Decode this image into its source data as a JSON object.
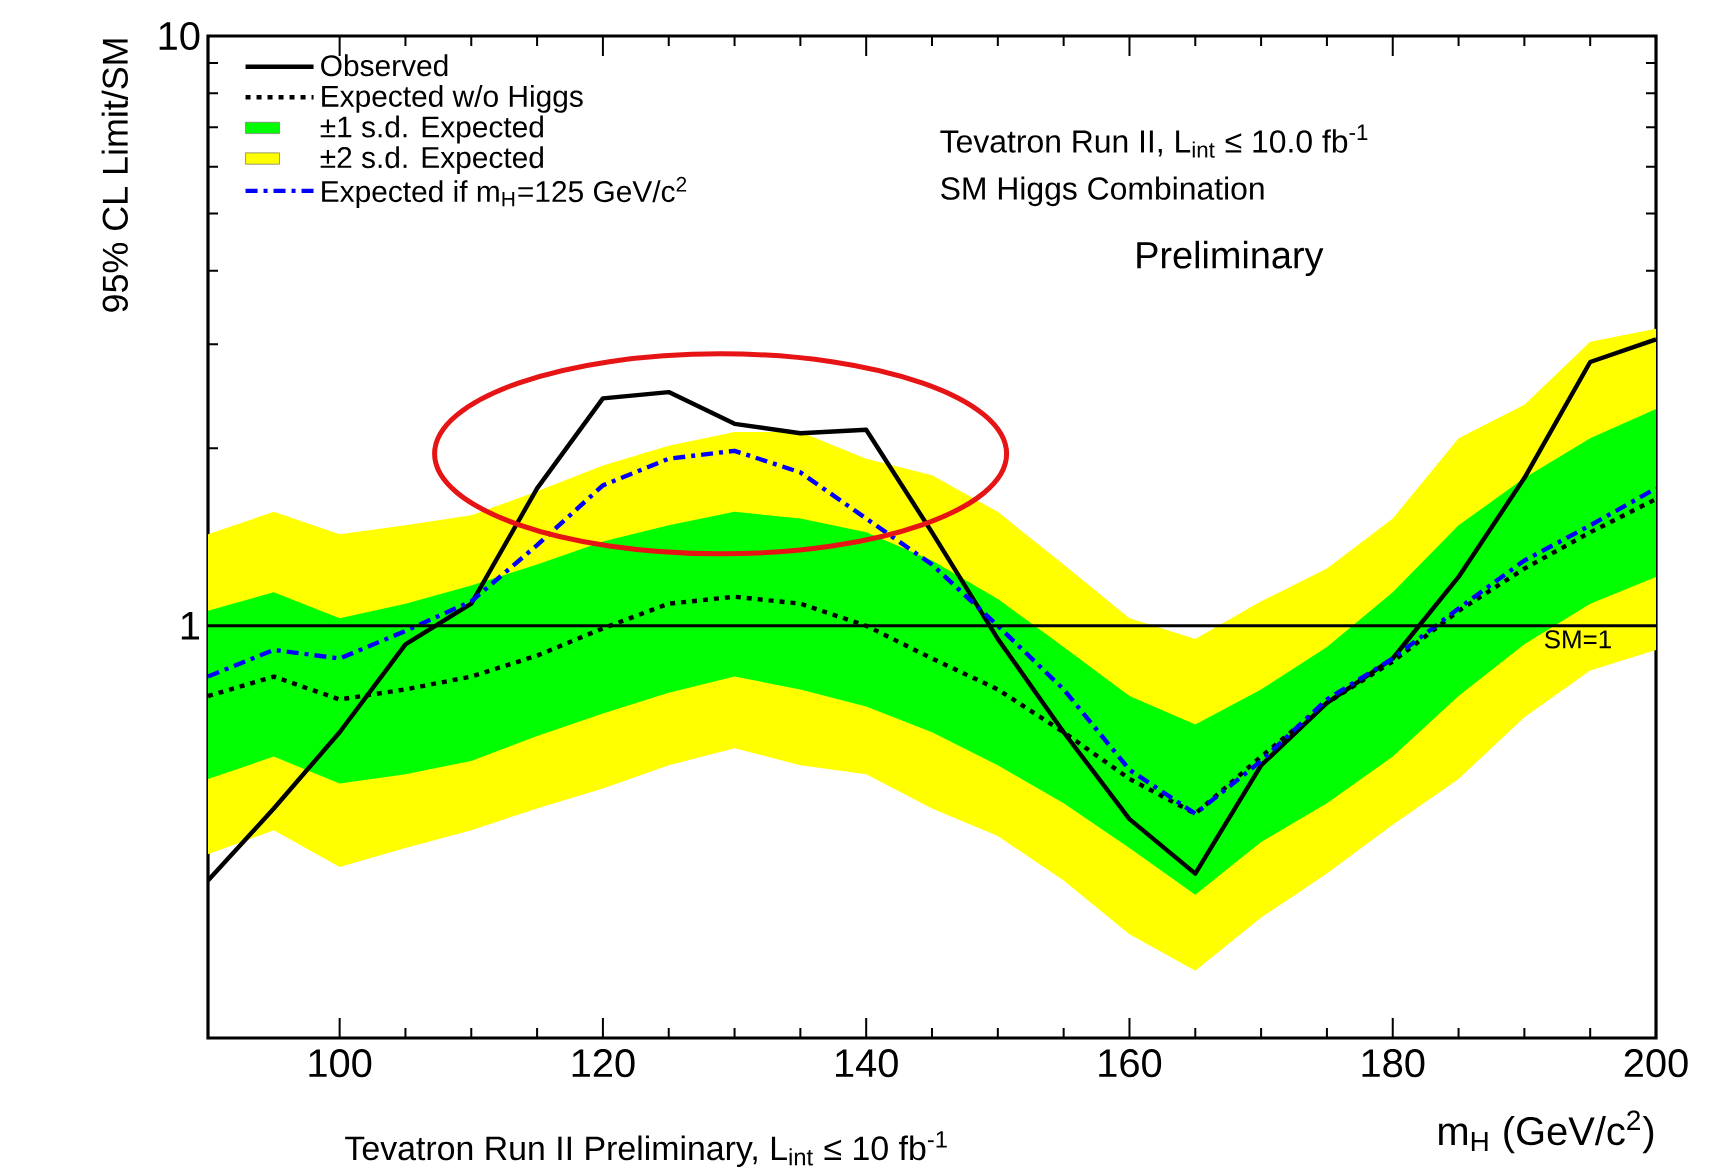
{
  "chart_data": {
    "type": "line",
    "xlabel": "m$_{H}$ (GeV/c$^{2}$)",
    "ylabel": "95% CL Limit/SM",
    "annotations": [
      "Tevatron Run II, L$_{int}$ ≤ 10.0 fb$^{-1}$",
      "SM Higgs Combination",
      "Preliminary",
      "Tevatron Run II Preliminary, L$_{int}$ ≤ 10 fb$^{-1}$"
    ],
    "x": [
      90,
      95,
      100,
      105,
      110,
      115,
      120,
      125,
      130,
      135,
      140,
      145,
      150,
      155,
      160,
      165,
      170,
      175,
      180,
      185,
      190,
      195,
      200
    ],
    "series": [
      {
        "name": "Observed",
        "type": "line",
        "color": "#000000",
        "line_style": "solid",
        "values": [
          0.37,
          0.49,
          0.66,
          0.93,
          1.09,
          1.71,
          2.43,
          2.49,
          2.2,
          2.12,
          2.15,
          1.44,
          0.95,
          0.66,
          0.47,
          0.38,
          0.58,
          0.74,
          0.88,
          1.21,
          1.78,
          2.8,
          3.06
        ]
      },
      {
        "name": "Expected w/o Higgs",
        "type": "line",
        "color": "#000000",
        "line_style": "dotted",
        "values": [
          0.76,
          0.82,
          0.75,
          0.78,
          0.82,
          0.89,
          0.99,
          1.09,
          1.12,
          1.09,
          1.0,
          0.88,
          0.78,
          0.66,
          0.55,
          0.48,
          0.6,
          0.74,
          0.87,
          1.06,
          1.25,
          1.44,
          1.64
        ]
      },
      {
        "name": "±1 s.d. Expected",
        "color": "#00ff00",
        "values": [
          null,
          null,
          null,
          null,
          null,
          null,
          null,
          null,
          null,
          null,
          null,
          null,
          null,
          null,
          null,
          null,
          null,
          null,
          null,
          null,
          null,
          null,
          null
        ],
        "lower": [
          0.55,
          0.6,
          0.54,
          0.56,
          0.59,
          0.65,
          0.71,
          0.77,
          0.82,
          0.78,
          0.73,
          0.66,
          0.58,
          0.5,
          0.42,
          0.35,
          0.43,
          0.5,
          0.6,
          0.76,
          0.93,
          1.09,
          1.21
        ],
        "upper": [
          1.06,
          1.14,
          1.03,
          1.09,
          1.17,
          1.27,
          1.39,
          1.48,
          1.56,
          1.52,
          1.44,
          1.29,
          1.11,
          0.92,
          0.76,
          0.68,
          0.78,
          0.92,
          1.14,
          1.48,
          1.78,
          2.08,
          2.33
        ]
      },
      {
        "name": "±2 s.d. Expected",
        "color": "#ffff00",
        "values": [
          null,
          null,
          null,
          null,
          null,
          null,
          null,
          null,
          null,
          null,
          null,
          null,
          null,
          null,
          null,
          null,
          null,
          null,
          null,
          null,
          null,
          null,
          null
        ],
        "lower": [
          0.41,
          0.45,
          0.39,
          0.42,
          0.45,
          0.49,
          0.53,
          0.58,
          0.62,
          0.58,
          0.56,
          0.49,
          0.44,
          0.37,
          0.3,
          0.26,
          0.32,
          0.38,
          0.46,
          0.55,
          0.7,
          0.84,
          0.91
        ],
        "upper": [
          1.43,
          1.56,
          1.43,
          1.48,
          1.54,
          1.69,
          1.87,
          2.02,
          2.13,
          2.13,
          1.92,
          1.8,
          1.56,
          1.27,
          1.03,
          0.95,
          1.1,
          1.25,
          1.52,
          2.08,
          2.37,
          3.03,
          3.19
        ]
      },
      {
        "name": "Expected if m$_{H}$=125 GeV/c$^{2}$",
        "type": "line",
        "color": "#0000ff",
        "line_style": "dashdot",
        "values": [
          0.82,
          0.91,
          0.88,
          0.98,
          1.1,
          1.37,
          1.73,
          1.92,
          1.98,
          1.82,
          1.52,
          1.27,
          1.0,
          0.78,
          0.57,
          0.48,
          0.59,
          0.75,
          0.88,
          1.07,
          1.29,
          1.48,
          1.71
        ]
      }
    ],
    "ref_lines": [
      {
        "axis": "y",
        "value": 1,
        "label": "SM=1",
        "color": "#000000"
      }
    ],
    "log": "y",
    "xlim": [
      90,
      200
    ],
    "ylim": [
      0.2,
      10
    ],
    "xticks": [
      100,
      120,
      140,
      160,
      180,
      200
    ],
    "yticks": [
      1,
      10
    ],
    "grid": false,
    "legend": "top left"
  }
}
